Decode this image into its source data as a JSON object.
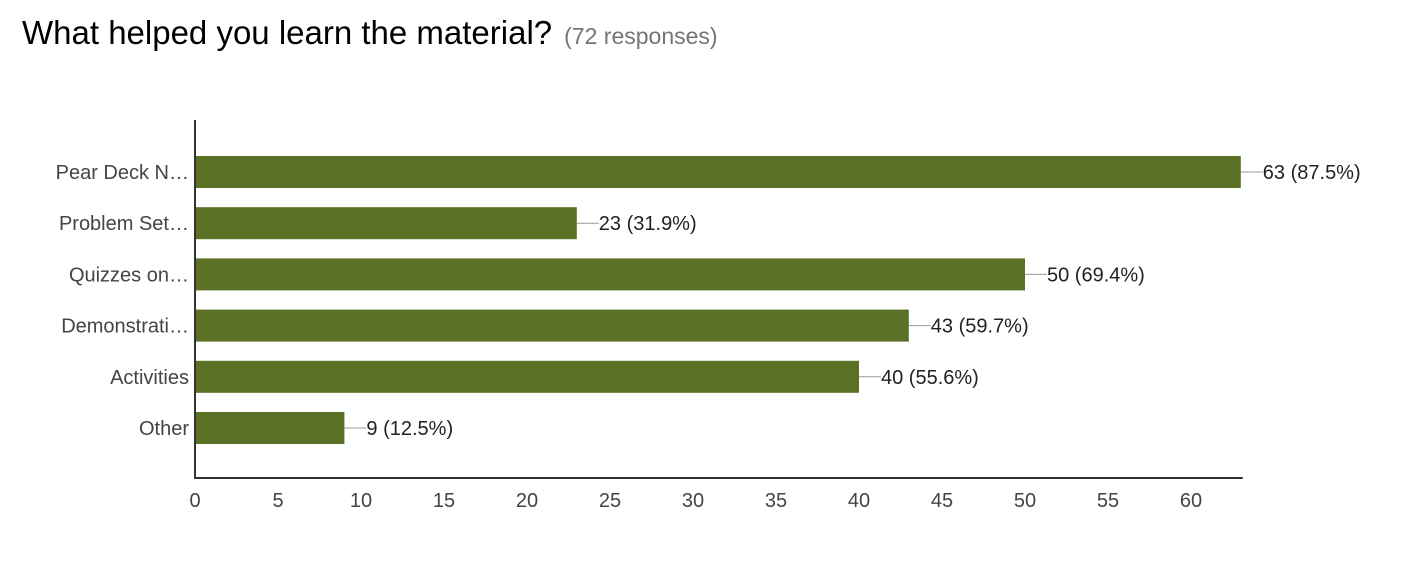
{
  "title": "What helped you learn the material?",
  "responses": "(72 responses)",
  "chart_data": {
    "type": "bar",
    "orientation": "horizontal",
    "categories": [
      "Pear Deck N…",
      "Problem Set…",
      "Quizzes on…",
      "Demonstrati…",
      "Activities",
      "Other"
    ],
    "values": [
      63,
      23,
      50,
      43,
      40,
      9
    ],
    "data_labels": [
      "63 (87.5%)",
      "23 (31.9%)",
      "50 (69.4%)",
      "43 (59.7%)",
      "40 (55.6%)",
      "9 (12.5%)"
    ],
    "xticks": [
      0,
      5,
      10,
      15,
      20,
      25,
      30,
      35,
      40,
      45,
      50,
      55,
      60
    ],
    "xlim": [
      0,
      63
    ],
    "grid": false,
    "bar_color": "#5a7025",
    "title": "What helped you learn the material?",
    "xlabel": "",
    "ylabel": ""
  }
}
